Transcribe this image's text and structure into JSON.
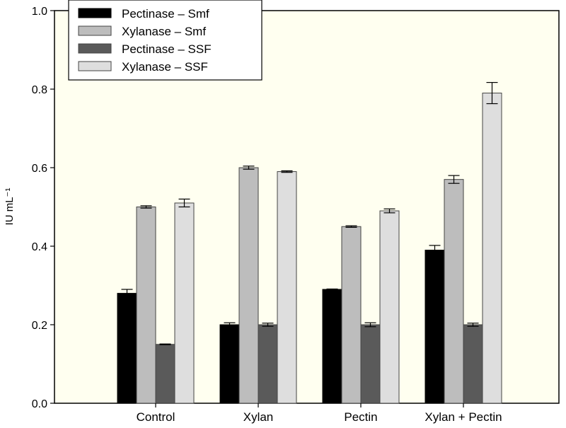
{
  "chart_data": {
    "type": "bar",
    "title": "",
    "xlabel": "",
    "ylabel": "IU mL⁻¹",
    "ylim": [
      0,
      1.0
    ],
    "yticks": [
      "0.0",
      "0.2",
      "0.4",
      "0.6",
      "0.8",
      "1.0"
    ],
    "grid": false,
    "legend_position": "top-left",
    "background": "#fffff0",
    "categories": [
      "Control",
      "Xylan",
      "Pectin",
      "Xylan + Pectin"
    ],
    "series": [
      {
        "name": "Pectinase – Smf",
        "color": "#000000",
        "values": [
          0.28,
          0.2,
          0.29,
          0.39
        ],
        "errors": [
          0.01,
          0.005,
          0.001,
          0.012
        ]
      },
      {
        "name": "Xylanase – Smf",
        "color": "#bdbdbd",
        "values": [
          0.5,
          0.6,
          0.45,
          0.57
        ],
        "errors": [
          0.003,
          0.004,
          0.002,
          0.01
        ]
      },
      {
        "name": "Pectinase – SSF",
        "color": "#5a5a5a",
        "values": [
          0.15,
          0.2,
          0.2,
          0.2
        ],
        "errors": [
          0.001,
          0.004,
          0.005,
          0.004
        ]
      },
      {
        "name": "Xylanase – SSF",
        "color": "#dedede",
        "values": [
          0.51,
          0.59,
          0.49,
          0.79
        ],
        "errors": [
          0.01,
          0.002,
          0.005,
          0.027
        ]
      }
    ]
  }
}
